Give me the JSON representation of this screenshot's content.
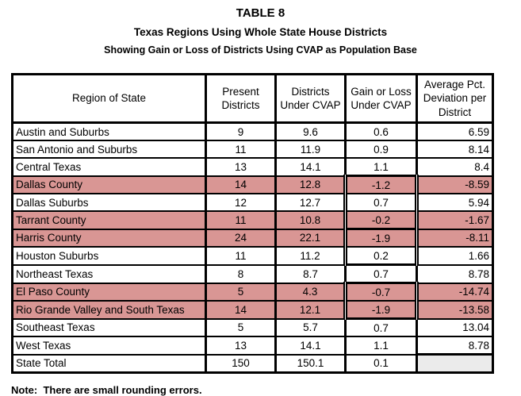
{
  "title": "TABLE 8",
  "subtitle": "Texas Regions Using Whole State House Districts",
  "subtitle2": "Showing Gain or Loss of Districts Using CVAP as Population Base",
  "note": "Note:  There are small rounding errors.",
  "colors": {
    "highlight_pink": "#D99694",
    "total_cell_gray": "#EBEBEB",
    "border_black": "#000000"
  },
  "table": {
    "headers": [
      "Region of State",
      "Present Districts",
      "Districts Under CVAP",
      "Gain or Loss Under CVAP",
      "Average Pct. Deviation per District"
    ],
    "rows": [
      {
        "region": "Austin and Suburbs",
        "present_districts": "9",
        "districts_under_cvap": "9.6",
        "gain_or_loss": "0.6",
        "avg_pct_deviation": "6.59",
        "highlighted": false,
        "box_group": null,
        "is_total": false
      },
      {
        "region": "San Antonio and Suburbs",
        "present_districts": "11",
        "districts_under_cvap": "11.9",
        "gain_or_loss": "0.9",
        "avg_pct_deviation": "8.14",
        "highlighted": false,
        "box_group": null,
        "is_total": false
      },
      {
        "region": "Central Texas",
        "present_districts": "13",
        "districts_under_cvap": "14.1",
        "gain_or_loss": "1.1",
        "avg_pct_deviation": "8.4",
        "highlighted": false,
        "box_group": null,
        "is_total": false
      },
      {
        "region": "Dallas County",
        "present_districts": "14",
        "districts_under_cvap": "12.8",
        "gain_or_loss": "-1.2",
        "avg_pct_deviation": "-8.59",
        "highlighted": true,
        "box_group": 1,
        "is_total": false
      },
      {
        "region": "Dallas Suburbs",
        "present_districts": "12",
        "districts_under_cvap": "12.7",
        "gain_or_loss": "0.7",
        "avg_pct_deviation": "5.94",
        "highlighted": false,
        "box_group": 1,
        "is_total": false
      },
      {
        "region": "Tarrant County",
        "present_districts": "11",
        "districts_under_cvap": "10.8",
        "gain_or_loss": "-0.2",
        "avg_pct_deviation": "-1.67",
        "highlighted": true,
        "box_group": 1,
        "is_total": false
      },
      {
        "region": "Harris County",
        "present_districts": "24",
        "districts_under_cvap": "22.1",
        "gain_or_loss": "-1.9",
        "avg_pct_deviation": "-8.11",
        "highlighted": true,
        "box_group": 2,
        "is_total": false
      },
      {
        "region": "Houston Suburbs",
        "present_districts": "11",
        "districts_under_cvap": "11.2",
        "gain_or_loss": "0.2",
        "avg_pct_deviation": "1.66",
        "highlighted": false,
        "box_group": 2,
        "is_total": false
      },
      {
        "region": "Northeast Texas",
        "present_districts": "8",
        "districts_under_cvap": "8.7",
        "gain_or_loss": "0.7",
        "avg_pct_deviation": "8.78",
        "highlighted": false,
        "box_group": null,
        "is_total": false
      },
      {
        "region": "El Paso County",
        "present_districts": "5",
        "districts_under_cvap": "4.3",
        "gain_or_loss": "-0.7",
        "avg_pct_deviation": "-14.74",
        "highlighted": true,
        "box_group": 3,
        "is_total": false
      },
      {
        "region": "Rio Grande Valley and South Texas",
        "present_districts": "14",
        "districts_under_cvap": "12.1",
        "gain_or_loss": "-1.9",
        "avg_pct_deviation": "-13.58",
        "highlighted": true,
        "box_group": 3,
        "is_total": false
      },
      {
        "region": "Southeast Texas",
        "present_districts": "5",
        "districts_under_cvap": "5.7",
        "gain_or_loss": "0.7",
        "avg_pct_deviation": "13.04",
        "highlighted": false,
        "box_group": null,
        "is_total": false
      },
      {
        "region": "West Texas",
        "present_districts": "13",
        "districts_under_cvap": "14.1",
        "gain_or_loss": "1.1",
        "avg_pct_deviation": "8.78",
        "highlighted": false,
        "box_group": null,
        "is_total": false
      },
      {
        "region": "State Total",
        "present_districts": "150",
        "districts_under_cvap": "150.1",
        "gain_or_loss": "0.1",
        "avg_pct_deviation": "",
        "highlighted": false,
        "box_group": null,
        "is_total": true
      }
    ]
  }
}
